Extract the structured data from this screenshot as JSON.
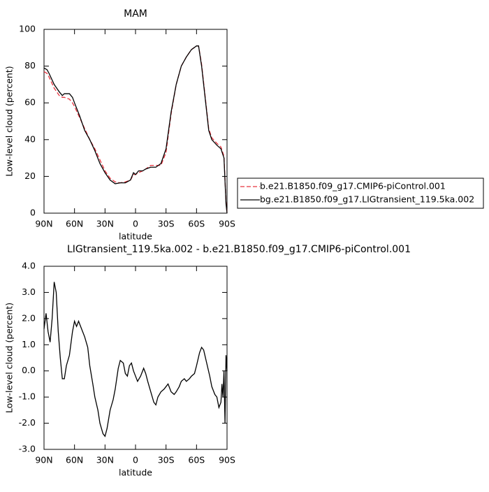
{
  "chart_data": [
    {
      "type": "line",
      "title": "MAM",
      "xlabel": "latitude",
      "ylabel": "Low-level cloud (percent)",
      "x": [
        90,
        87,
        85,
        80,
        75,
        72,
        70,
        65,
        62,
        60,
        55,
        50,
        45,
        40,
        35,
        30,
        25,
        20,
        15,
        10,
        5,
        2,
        0,
        -3,
        -7,
        -10,
        -15,
        -20,
        -25,
        -30,
        -35,
        -40,
        -45,
        -50,
        -55,
        -60,
        -62,
        -65,
        -68,
        -70,
        -72,
        -75,
        -80,
        -84,
        -87,
        -89,
        -90
      ],
      "xlim": [
        90,
        -90
      ],
      "xticks": [
        {
          "value": 90,
          "label": "90N"
        },
        {
          "value": 60,
          "label": "60N"
        },
        {
          "value": 30,
          "label": "30N"
        },
        0,
        {
          "value": -30,
          "label": "30S"
        },
        {
          "value": -60,
          "label": "60S"
        },
        {
          "value": -90,
          "label": "90S"
        }
      ],
      "ylim": [
        0,
        100
      ],
      "yticks": [
        0,
        20,
        40,
        60,
        80,
        100
      ],
      "legend": "right",
      "series": [
        {
          "name": "b.e21.B1850.f09_g17.CMIP6-piControl.001",
          "color": "#e8343f",
          "linestyle": "dashed",
          "values": [
            77,
            76,
            74,
            68,
            64,
            63,
            63,
            62,
            60,
            58,
            52,
            46,
            40,
            35,
            29,
            23,
            19,
            17,
            16.5,
            17,
            18,
            21,
            21,
            22,
            23,
            24,
            26,
            26,
            26,
            33,
            54,
            70,
            80,
            85,
            89,
            91,
            91,
            81,
            66,
            56,
            46,
            41,
            38,
            36,
            31,
            6,
            0
          ]
        },
        {
          "name": "bg.e21.B1850.f09_g17.LIGtransient_119.5ka.002",
          "color": "#000000",
          "linestyle": "solid",
          "values": [
            79,
            78,
            76,
            70,
            66,
            64,
            65,
            65,
            63,
            60,
            53,
            45,
            40,
            34,
            27,
            22,
            18,
            16,
            16.5,
            16.5,
            18,
            22,
            21,
            23,
            23,
            24,
            25,
            25,
            27,
            35,
            55,
            70,
            80,
            85,
            89,
            91,
            91,
            80,
            65,
            55,
            45,
            40,
            37,
            35,
            30,
            5,
            0
          ]
        }
      ]
    },
    {
      "type": "line",
      "title": "LIGtransient_119.5ka.002 - b.e21.B1850.f09_g17.CMIP6-piControl.001",
      "xlabel": "latitude",
      "ylabel": "Low-level cloud (percent)",
      "x": [
        90,
        88,
        86,
        84,
        82,
        80,
        78,
        76,
        74,
        72,
        70,
        68,
        65,
        62,
        60,
        58,
        56,
        54,
        50,
        47,
        45,
        42,
        40,
        37,
        35,
        32,
        30,
        28,
        25,
        22,
        20,
        17,
        15,
        12,
        10,
        8,
        6,
        4,
        2,
        0,
        -2,
        -5,
        -8,
        -10,
        -12,
        -15,
        -18,
        -20,
        -22,
        -25,
        -28,
        -30,
        -32,
        -35,
        -38,
        -40,
        -43,
        -45,
        -48,
        -50,
        -53,
        -55,
        -58,
        -60,
        -63,
        -65,
        -67,
        -70,
        -73,
        -75,
        -78,
        -80,
        -82,
        -84,
        -85,
        -86,
        -87,
        -88,
        -89,
        -90
      ],
      "xlim": [
        90,
        -90
      ],
      "xticks": [
        {
          "value": 90,
          "label": "90N"
        },
        {
          "value": 60,
          "label": "60N"
        },
        {
          "value": 30,
          "label": "30N"
        },
        0,
        {
          "value": -30,
          "label": "30S"
        },
        {
          "value": -60,
          "label": "60S"
        },
        {
          "value": -90,
          "label": "90S"
        }
      ],
      "ylim": [
        -3,
        4
      ],
      "yticks": [
        {
          "value": -3,
          "label": "-3.0"
        },
        {
          "value": -2,
          "label": "-2.0"
        },
        {
          "value": -1,
          "label": "-1.0"
        },
        {
          "value": 0,
          "label": "0.0"
        },
        {
          "value": 1,
          "label": "1.0"
        },
        {
          "value": 2,
          "label": "2.0"
        },
        {
          "value": 3,
          "label": "3.0"
        },
        {
          "value": 4,
          "label": "4.0"
        }
      ],
      "series": [
        {
          "color": "#000000",
          "linestyle": "solid",
          "values": [
            1.6,
            2.2,
            1.5,
            1.1,
            2.0,
            3.4,
            3.0,
            1.5,
            0.5,
            -0.3,
            -0.3,
            0.2,
            0.6,
            1.5,
            1.9,
            1.7,
            1.9,
            1.7,
            1.3,
            0.9,
            0.2,
            -0.5,
            -1.0,
            -1.5,
            -2.0,
            -2.4,
            -2.5,
            -2.2,
            -1.5,
            -1.1,
            -0.7,
            0.1,
            0.4,
            0.3,
            -0.1,
            -0.2,
            0.2,
            0.3,
            0.0,
            -0.2,
            -0.4,
            -0.2,
            0.1,
            -0.1,
            -0.4,
            -0.8,
            -1.2,
            -1.3,
            -1.0,
            -0.8,
            -0.7,
            -0.6,
            -0.5,
            -0.8,
            -0.9,
            -0.8,
            -0.6,
            -0.4,
            -0.3,
            -0.4,
            -0.3,
            -0.2,
            -0.1,
            0.2,
            0.7,
            0.9,
            0.8,
            0.3,
            -0.2,
            -0.6,
            -0.9,
            -1.0,
            -1.4,
            -1.2,
            -0.5,
            -1.0,
            0.0,
            -2.0,
            0.6,
            0
          ]
        }
      ]
    }
  ]
}
